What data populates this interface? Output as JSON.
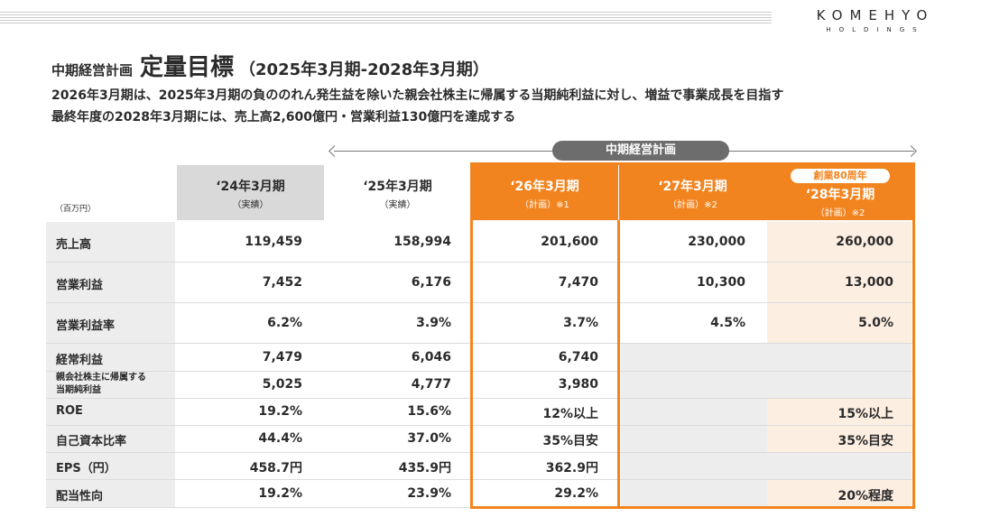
{
  "logo": {
    "main": "KOMEHYO",
    "sub": "HOLDINGS"
  },
  "title": {
    "small": "中期経営計画",
    "big": "定量目標",
    "period": "（2025年3月期-2028年3月期）"
  },
  "lead": [
    "2026年3月期は、2025年3月期の負ののれん発生益を除いた親会社株主に帰属する当期純利益に対し、増益で事業成長を目指す",
    "最終年度の2028年3月期には、売上高2,600億円・営業利益130億円を達成する"
  ],
  "plan_label": "中期経営計画",
  "unit": "（百万円）",
  "columns": [
    {
      "title": "‘24年3月期",
      "sub": "（実績）"
    },
    {
      "title": "‘25年3月期",
      "sub": "（実績）"
    },
    {
      "title": "‘26年3月期",
      "sub": "（計画）※1"
    },
    {
      "title": "‘27年3月期",
      "sub": "（計画）※2"
    },
    {
      "title": "‘28年3月期",
      "sub": "（計画）※2",
      "badge": "創業80周年"
    }
  ],
  "rows": [
    {
      "label": "売上高",
      "values": [
        "119,459",
        "158,994",
        "201,600",
        "230,000",
        "260,000"
      ]
    },
    {
      "label": "営業利益",
      "values": [
        "7,452",
        "6,176",
        "7,470",
        "10,300",
        "13,000"
      ]
    },
    {
      "label": "営業利益率",
      "values": [
        "6.2%",
        "3.9%",
        "3.7%",
        "4.5%",
        "5.0%"
      ]
    },
    {
      "label": "経常利益",
      "values": [
        "7,479",
        "6,046",
        "6,740",
        "",
        ""
      ]
    },
    {
      "label": "親会社株主に帰属する当期純利益",
      "label_lines": [
        "親会社株主に帰属する",
        "当期純利益"
      ],
      "values": [
        "5,025",
        "4,777",
        "3,980",
        "",
        ""
      ]
    },
    {
      "label": "ROE",
      "values": [
        "19.2%",
        "15.6%",
        "12%以上",
        "",
        "15%以上"
      ]
    },
    {
      "label": "自己資本比率",
      "values": [
        "44.4%",
        "37.0%",
        "35%目安",
        "",
        "35%目安"
      ]
    },
    {
      "label": "EPS（円）",
      "values": [
        "458.7円",
        "435.9円",
        "362.9円",
        "",
        ""
      ]
    },
    {
      "label": "配当性向",
      "values": [
        "19.2%",
        "23.9%",
        "29.2%",
        "",
        "20%程度"
      ]
    }
  ],
  "colors": {
    "accent": "#f2841f",
    "header_gray": "#d9d9d9",
    "pill_gray": "#6d6d6d",
    "peach": "#fdeee2"
  }
}
